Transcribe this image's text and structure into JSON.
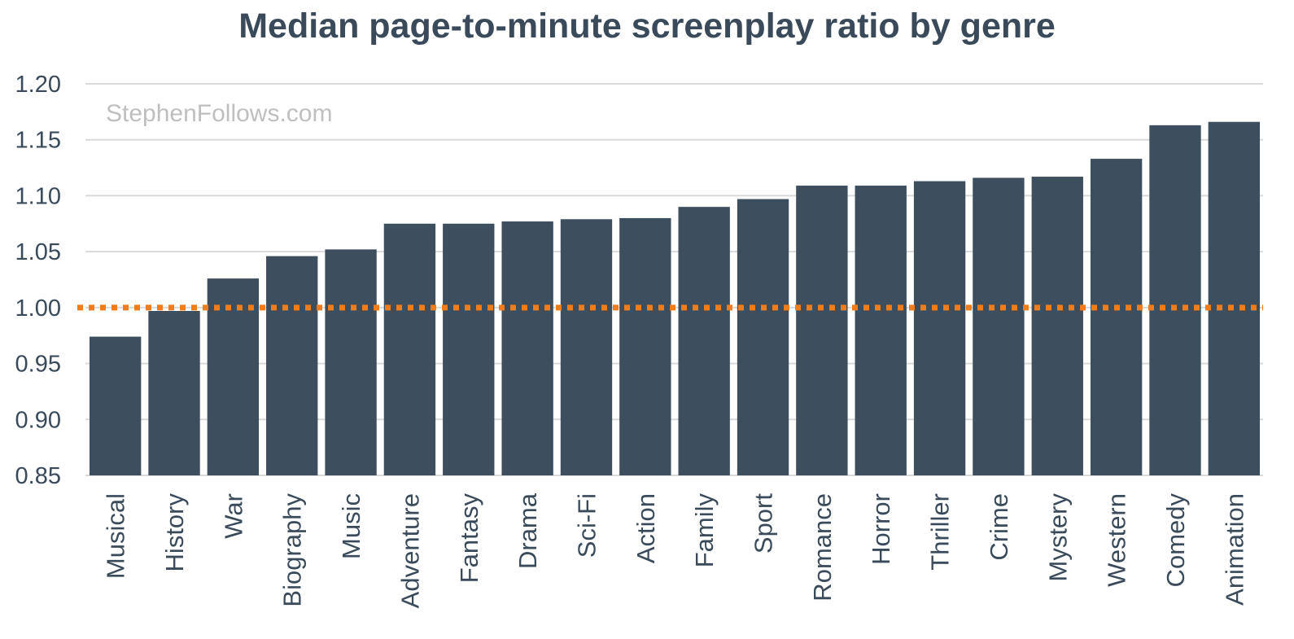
{
  "watermark": "StephenFollows.com",
  "chart_data": {
    "type": "bar",
    "title": "Median page-to-minute screenplay ratio by genre",
    "xlabel": "",
    "ylabel": "",
    "ylim": [
      0.85,
      1.2
    ],
    "yticks": [
      "0.85",
      "0.90",
      "0.95",
      "1.00",
      "1.05",
      "1.10",
      "1.15",
      "1.20"
    ],
    "yticks_values": [
      0.85,
      0.9,
      0.95,
      1.0,
      1.05,
      1.1,
      1.15,
      1.2
    ],
    "grid": true,
    "categories": [
      "Musical",
      "History",
      "War",
      "Biography",
      "Music",
      "Adventure",
      "Fantasy",
      "Drama",
      "Sci-Fi",
      "Action",
      "Family",
      "Sport",
      "Romance",
      "Horror",
      "Thriller",
      "Crime",
      "Mystery",
      "Western",
      "Comedy",
      "Animation"
    ],
    "values": [
      0.974,
      0.997,
      1.026,
      1.046,
      1.052,
      1.075,
      1.075,
      1.077,
      1.079,
      1.08,
      1.09,
      1.097,
      1.109,
      1.109,
      1.113,
      1.116,
      1.117,
      1.133,
      1.163,
      1.166
    ],
    "reference_line": {
      "value": 1.0,
      "style": "dotted"
    },
    "colors": {
      "bar": "#3d4e5e",
      "reference_line": "#f07d1a",
      "grid": "#d9d9d9",
      "text": "#3a4a5a",
      "watermark": "#bfbfbf"
    }
  }
}
